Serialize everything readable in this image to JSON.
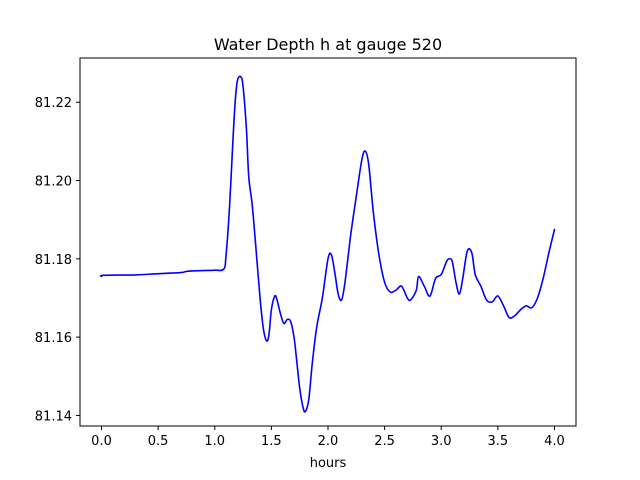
{
  "chart_data": {
    "type": "line",
    "title": "Water Depth h at gauge 520",
    "xlabel": "hours",
    "ylabel": "",
    "xlim": [
      -0.19,
      4.19
    ],
    "ylim": [
      81.1373,
      81.2313
    ],
    "xticks": [
      0.0,
      0.5,
      1.0,
      1.5,
      2.0,
      2.5,
      3.0,
      3.5,
      4.0
    ],
    "xtick_labels": [
      "0.0",
      "0.5",
      "1.0",
      "1.5",
      "2.0",
      "2.5",
      "3.0",
      "3.5",
      "4.0"
    ],
    "yticks": [
      81.14,
      81.16,
      81.18,
      81.2,
      81.22
    ],
    "ytick_labels": [
      "81.14",
      "81.16",
      "81.18",
      "81.20",
      "81.22"
    ],
    "grid": false,
    "series": [
      {
        "color": "#0000ff",
        "x": [
          0.0,
          0.02,
          0.3,
          0.5,
          0.7,
          0.75,
          0.8,
          0.9,
          1.0,
          1.08,
          1.1,
          1.13,
          1.16,
          1.18,
          1.2,
          1.23,
          1.25,
          1.28,
          1.3,
          1.33,
          1.36,
          1.4,
          1.43,
          1.46,
          1.48,
          1.5,
          1.53,
          1.55,
          1.58,
          1.61,
          1.64,
          1.67,
          1.7,
          1.72,
          1.75,
          1.78,
          1.8,
          1.83,
          1.86,
          1.9,
          1.95,
          2.0,
          2.03,
          2.06,
          2.09,
          2.12,
          2.15,
          2.2,
          2.25,
          2.3,
          2.33,
          2.36,
          2.4,
          2.45,
          2.5,
          2.55,
          2.6,
          2.65,
          2.7,
          2.73,
          2.78,
          2.8,
          2.85,
          2.9,
          2.95,
          3.0,
          3.05,
          3.08,
          3.1,
          3.13,
          3.16,
          3.19,
          3.23,
          3.27,
          3.3,
          3.35,
          3.4,
          3.45,
          3.5,
          3.55,
          3.6,
          3.65,
          3.7,
          3.75,
          3.8,
          3.85,
          3.9,
          3.95,
          4.0
        ],
        "y": [
          81.1755,
          81.1758,
          81.1759,
          81.1762,
          81.1765,
          81.1768,
          81.1769,
          81.177,
          81.1771,
          81.1774,
          81.181,
          81.193,
          81.21,
          81.22,
          81.2255,
          81.2265,
          81.224,
          81.213,
          81.201,
          81.194,
          81.184,
          81.17,
          81.162,
          81.159,
          81.161,
          81.167,
          81.1705,
          81.1695,
          81.166,
          81.1635,
          81.1645,
          81.164,
          81.16,
          81.155,
          81.147,
          81.142,
          81.141,
          81.144,
          81.153,
          81.1625,
          81.17,
          81.18,
          81.181,
          81.1765,
          81.171,
          81.1695,
          81.174,
          81.186,
          81.196,
          81.2055,
          81.2075,
          81.204,
          81.192,
          81.181,
          81.174,
          81.1715,
          81.172,
          81.173,
          81.17,
          81.1695,
          81.172,
          81.1755,
          81.173,
          81.1705,
          81.175,
          81.176,
          81.1795,
          81.18,
          81.179,
          81.174,
          81.171,
          81.175,
          81.182,
          81.1815,
          81.176,
          81.173,
          81.1695,
          81.169,
          81.1705,
          81.168,
          81.165,
          81.1655,
          81.167,
          81.168,
          81.1675,
          81.17,
          81.175,
          81.1815,
          81.1875
        ]
      }
    ]
  }
}
